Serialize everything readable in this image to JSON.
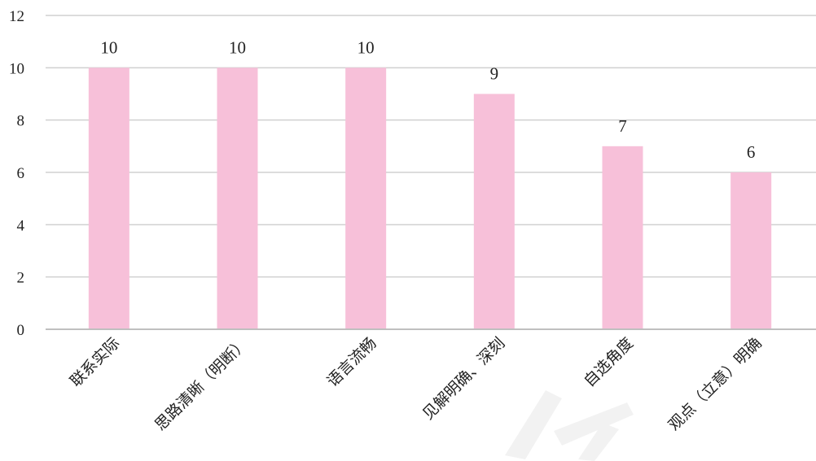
{
  "chart_data": {
    "type": "bar",
    "categories": [
      "联系实际",
      "思路清晰（明断）",
      "语言流畅",
      "见解明确、深刻",
      "自选角度",
      "观点（立意）明确"
    ],
    "values": [
      10,
      10,
      10,
      9,
      7,
      6
    ],
    "ylim": [
      0,
      12
    ],
    "yticks": [
      0,
      2,
      4,
      6,
      8,
      10,
      12
    ],
    "grid": true,
    "legend": "none",
    "colors": {
      "bar": "#f7c0d9",
      "grid": "#d0d0d0",
      "axis": "#bfbfbf"
    }
  }
}
